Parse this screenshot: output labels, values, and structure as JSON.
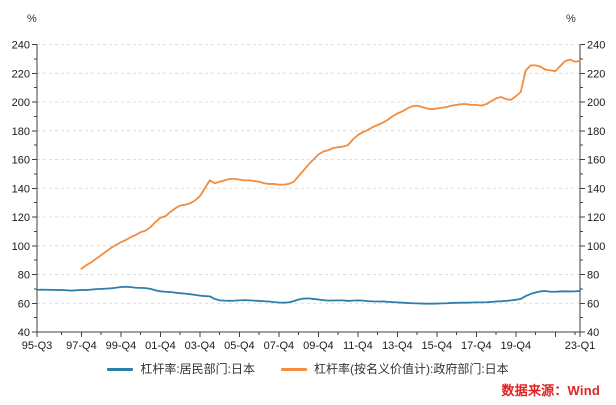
{
  "figure": {
    "y_unit_left": "%",
    "y_unit_right": "%",
    "source_text": "数据来源：Wind",
    "source_color": "#e02424"
  },
  "legend": {
    "items": [
      {
        "label": "杠杆率:居民部门:日本",
        "color": "#2e7fa8"
      },
      {
        "label": "杠杆率(按名义价值计):政府部门:日本",
        "color": "#f28c3e"
      }
    ]
  },
  "chart_data": {
    "type": "line",
    "title": "",
    "xlabel": "",
    "ylabel": "%",
    "grid": "horizontal-dashed",
    "legend_position": "bottom-center",
    "x_axis": {
      "unit": "quarter",
      "start": "1995-Q3",
      "end": "2023-Q1",
      "total_quarters": 110,
      "major_ticks": [
        {
          "label": "95-Q3",
          "q": 0
        },
        {
          "label": "97-Q4",
          "q": 9
        },
        {
          "label": "99-Q4",
          "q": 17
        },
        {
          "label": "01-Q4",
          "q": 25
        },
        {
          "label": "03-Q4",
          "q": 33
        },
        {
          "label": "05-Q4",
          "q": 41
        },
        {
          "label": "07-Q4",
          "q": 49
        },
        {
          "label": "09-Q4",
          "q": 57
        },
        {
          "label": "11-Q4",
          "q": 65
        },
        {
          "label": "13-Q4",
          "q": 73
        },
        {
          "label": "15-Q4",
          "q": 81
        },
        {
          "label": "17-Q4",
          "q": 89
        },
        {
          "label": "19-Q4",
          "q": 97
        },
        {
          "label": "",
          "q": 105
        },
        {
          "label": "23-Q1",
          "q": 110
        }
      ],
      "minor_tick_quarters": [
        5,
        13,
        21,
        29,
        37,
        45,
        53,
        61,
        69,
        77,
        85,
        93,
        101,
        109
      ]
    },
    "y_axis": {
      "min": 40,
      "max": 240,
      "ticks": [
        40,
        60,
        80,
        100,
        120,
        140,
        160,
        180,
        200,
        220,
        240
      ],
      "minor_tick_step": 10,
      "unit": "%",
      "dual_axis": true
    },
    "series": [
      {
        "name": "杠杆率:居民部门:日本",
        "color": "#2e7fa8",
        "frequency": "quarterly",
        "start": "1995-Q3",
        "offset_quarters": 0,
        "values": [
          69.3,
          69.5,
          69.4,
          69.3,
          69.2,
          69.3,
          69.0,
          68.8,
          69.0,
          69.3,
          69.2,
          69.5,
          69.8,
          70.0,
          70.2,
          70.4,
          70.8,
          71.3,
          71.5,
          71.2,
          70.8,
          70.7,
          70.5,
          70.0,
          69.0,
          68.3,
          68.0,
          67.8,
          67.4,
          67.0,
          66.7,
          66.3,
          65.8,
          65.3,
          65.0,
          64.8,
          63.0,
          62.0,
          61.8,
          61.7,
          61.8,
          62.0,
          62.2,
          62.0,
          61.8,
          61.6,
          61.4,
          61.2,
          60.8,
          60.5,
          60.4,
          60.6,
          61.5,
          62.6,
          63.2,
          63.4,
          63.0,
          62.6,
          62.2,
          61.8,
          61.9,
          62.0,
          62.0,
          61.6,
          61.8,
          62.0,
          61.8,
          61.5,
          61.3,
          61.2,
          61.3,
          61.0,
          60.8,
          60.6,
          60.4,
          60.2,
          60.0,
          59.9,
          59.8,
          59.7,
          59.7,
          59.8,
          59.9,
          60.0,
          60.2,
          60.3,
          60.4,
          60.4,
          60.5,
          60.6,
          60.6,
          60.7,
          60.9,
          61.2,
          61.4,
          61.6,
          62.0,
          62.4,
          63.0,
          65.0,
          66.5,
          67.5,
          68.3,
          68.5,
          68.0,
          68.0,
          68.2,
          68.3,
          68.2,
          68.3,
          68.5
        ]
      },
      {
        "name": "杠杆率(按名义价值计):政府部门:日本",
        "color": "#f28c3e",
        "frequency": "quarterly",
        "start": "1997-Q4",
        "offset_quarters": 9,
        "values": [
          84.0,
          86.5,
          88.5,
          91.0,
          93.5,
          96.0,
          98.5,
          100.5,
          102.5,
          104.0,
          106.0,
          107.5,
          109.5,
          110.5,
          113.0,
          116.5,
          119.5,
          120.5,
          123.5,
          126.0,
          128.0,
          128.5,
          129.5,
          131.5,
          134.5,
          140.0,
          145.5,
          143.5,
          144.5,
          145.5,
          146.5,
          146.5,
          146.0,
          145.5,
          145.5,
          145.0,
          144.5,
          143.5,
          143.0,
          143.0,
          142.5,
          142.5,
          143.0,
          144.5,
          148.5,
          152.5,
          156.5,
          160.0,
          163.5,
          165.5,
          166.5,
          168.0,
          168.5,
          169.0,
          170.0,
          174.0,
          177.0,
          179.0,
          180.5,
          182.5,
          184.0,
          185.5,
          187.5,
          190.0,
          192.0,
          193.5,
          195.5,
          197.0,
          197.5,
          196.5,
          195.5,
          195.0,
          195.5,
          196.0,
          196.5,
          197.5,
          198.0,
          198.5,
          198.5,
          198.0,
          198.0,
          197.5,
          198.5,
          200.5,
          202.5,
          203.5,
          202.0,
          201.5,
          204.0,
          207.0,
          222.0,
          225.5,
          225.5,
          224.5,
          222.5,
          222.0,
          221.5,
          225.0,
          228.5,
          229.5,
          228.0,
          228.5
        ]
      }
    ]
  }
}
